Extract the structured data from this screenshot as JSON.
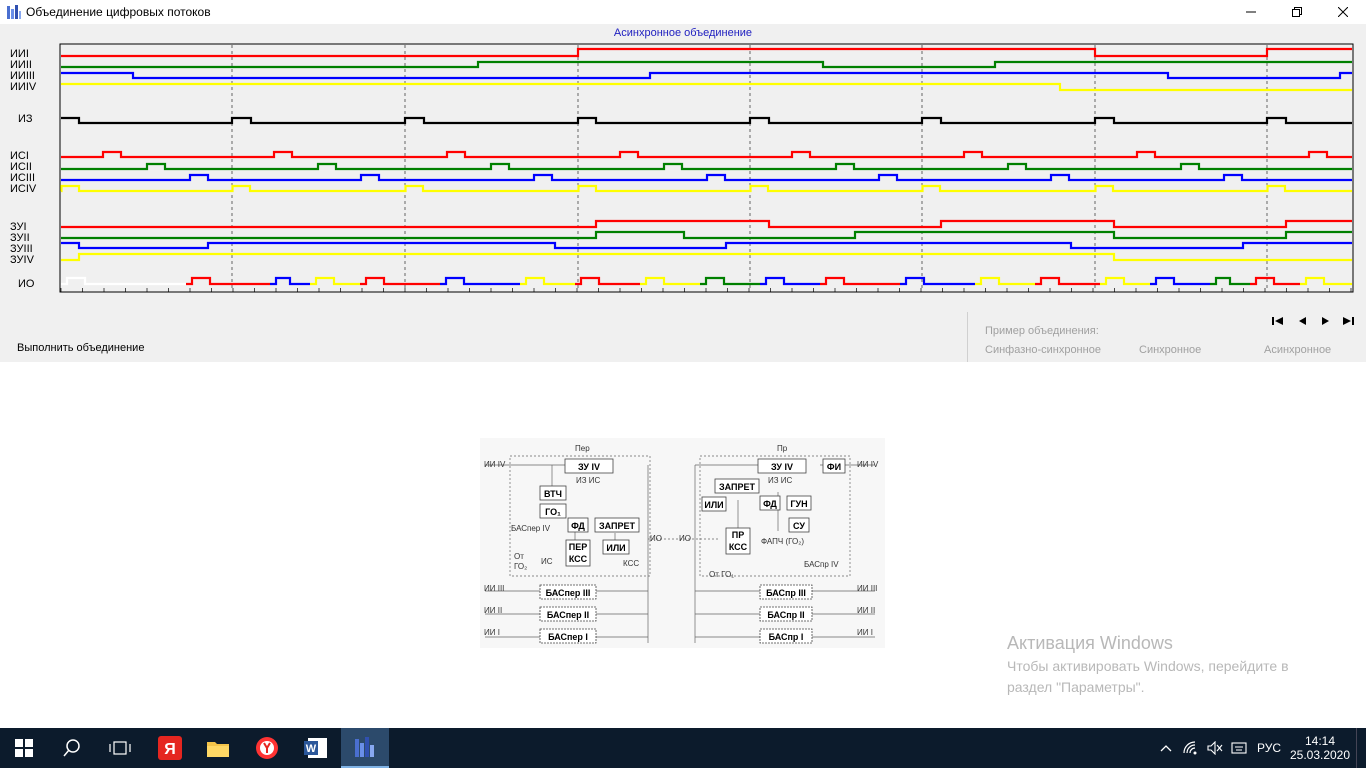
{
  "window": {
    "title": "Объединение цифровых потоков",
    "minimize": "—",
    "restore": "❐",
    "close": "✕"
  },
  "diagram": {
    "title": "Асинхронное объединение",
    "labels": {
      "ii1": "ИИI",
      "ii2": "ИИII",
      "ii3": "ИИIII",
      "ii4": "ИИIV",
      "iz": "ИЗ",
      "is1": "ИСI",
      "is2": "ИСII",
      "is3": "ИСIII",
      "is4": "ИСIV",
      "zu1": "ЗУI",
      "zu2": "ЗУII",
      "zu3": "ЗУIII",
      "zu4": "ЗУIV",
      "io": "ИО"
    },
    "colors": {
      "red": "#ff0000",
      "green": "#008000",
      "blue": "#0000ff",
      "yellow": "#ffff00",
      "black": "#000000",
      "white": "#ffffff"
    }
  },
  "controls": {
    "run_label": "Выполнить объединение",
    "examples_header": "Пример объединения:",
    "examples": [
      "Синфазно-синхронное",
      "Синхронное",
      "Асинхронное"
    ],
    "nav": [
      "|◄",
      "◄",
      "►",
      "►|"
    ]
  },
  "schematic": {
    "per": "Пер",
    "pr": "Пр",
    "inputs": [
      "ИИ IV",
      "ИИ III",
      "ИИ II",
      "ИИ I"
    ],
    "blocks": {
      "zu_left": "ЗУ IV",
      "vtch": "ВТЧ",
      "go1": "ГО₁",
      "fd_left": "ФД",
      "zapret_left": "ЗАПРЕТ",
      "per_kss_1": "ПЕР",
      "per_kss_2": "КСС",
      "ili_left": "ИЛИ",
      "zu_right": "ЗУ IV",
      "fi": "ФИ",
      "zapret_right": "ЗАПРЕТ",
      "ili_right": "ИЛИ",
      "fd_right": "ФД",
      "gun": "ГУН",
      "su": "СУ",
      "pr_kss_1": "ПР",
      "pr_kss_2": "КСС",
      "bas_per_3": "БАСпер III",
      "bas_per_2": "БАСпер II",
      "bas_per_1": "БАСпер I",
      "bas_pr_3": "БАСпр III",
      "bas_pr_2": "БАСпр II",
      "bas_pr_1": "БАСпр I"
    },
    "small": {
      "iz_is_left": "ИЗ   ИС",
      "bas_per_iv": "БАСпер IV",
      "ot_go2": "От",
      "go2": "ГО₂",
      "is": "ИС",
      "kss": "КСС",
      "io_left": "ИО",
      "io_right": "ИО",
      "iz_is_right": "ИЗ   ИС",
      "fapch": "ФАПЧ (ГО₂)",
      "ot_go1": "От ГО₁",
      "bas_pr_iv": "БАСпр IV"
    }
  },
  "watermark": {
    "title": "Активация Windows",
    "line1": "Чтобы активировать Windows, перейдите в",
    "line2": "раздел \"Параметры\"."
  },
  "taskbar": {
    "time": "14:14",
    "date": "25.03.2020",
    "lang": "РУС"
  }
}
